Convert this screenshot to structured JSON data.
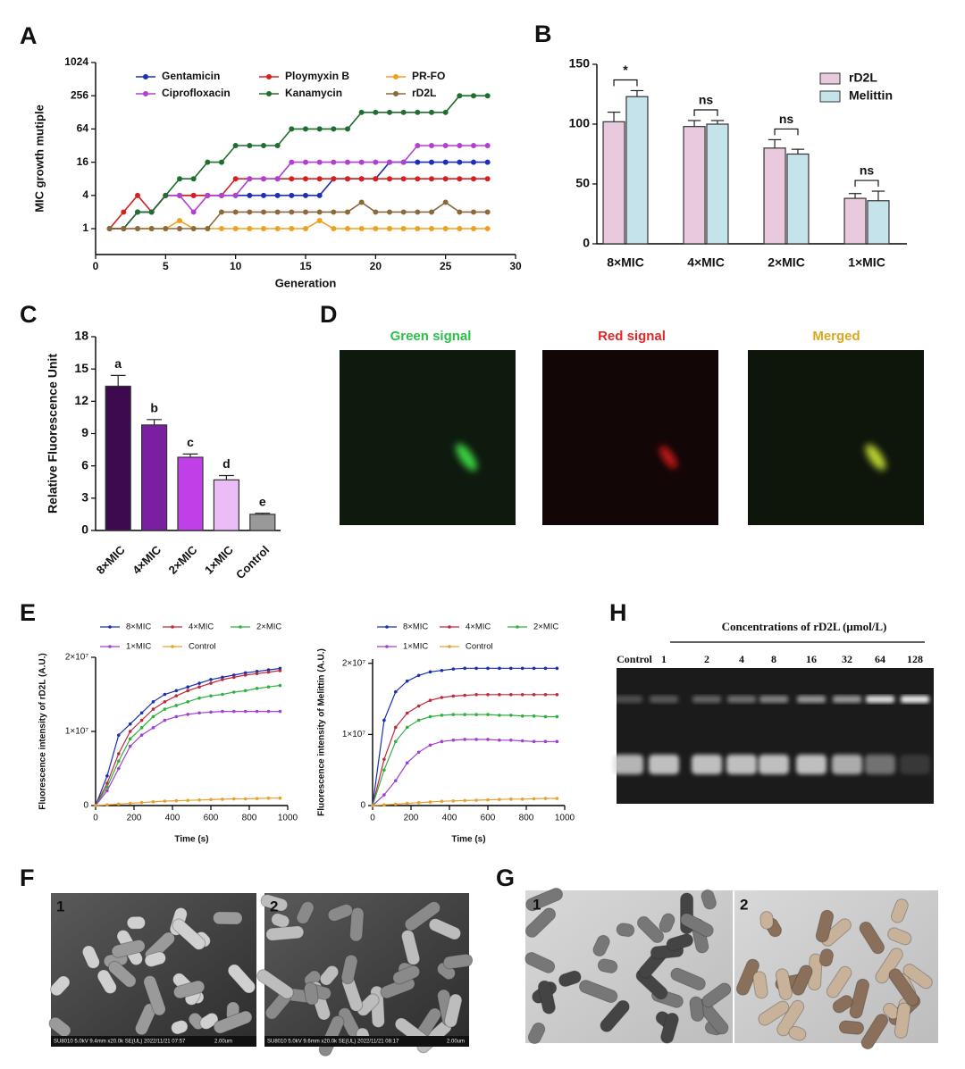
{
  "panel_labels": {
    "a": "A",
    "b": "B",
    "c": "C",
    "d": "D",
    "e": "E",
    "f": "F",
    "g": "G",
    "h": "H"
  },
  "chart_data": [
    {
      "type": "line",
      "ylabel": "MIC growth mutiple",
      "xlabel": "Generation",
      "yscale": "log",
      "xlim": [
        0,
        30
      ],
      "xticks": [
        0,
        5,
        10,
        15,
        20,
        25,
        30
      ],
      "ylim": [
        0.34,
        1024
      ],
      "yticks": [
        1,
        4,
        16,
        64,
        256,
        1024
      ],
      "x": [
        1,
        2,
        3,
        4,
        5,
        6,
        7,
        8,
        9,
        10,
        11,
        12,
        13,
        14,
        15,
        16,
        17,
        18,
        19,
        20,
        21,
        22,
        23,
        24,
        25,
        26,
        27,
        28
      ],
      "series": [
        {
          "name": "Gentamicin",
          "color": "#1f2fb5",
          "values": [
            1,
            1,
            2,
            2,
            4,
            4,
            4,
            4,
            4,
            4,
            4,
            4,
            4,
            4,
            4,
            4,
            8,
            8,
            8,
            8,
            16,
            16,
            16,
            16,
            16,
            16,
            16,
            16
          ]
        },
        {
          "name": "Ploymyxin B",
          "color": "#d62020",
          "values": [
            1,
            2,
            4,
            2,
            4,
            4,
            4,
            4,
            4,
            8,
            8,
            8,
            8,
            8,
            8,
            8,
            8,
            8,
            8,
            8,
            8,
            8,
            8,
            8,
            8,
            8,
            8,
            8
          ]
        },
        {
          "name": "PR-FO",
          "color": "#f0a020",
          "values": [
            1,
            1,
            1,
            1,
            1,
            1.4,
            1,
            1,
            1,
            1,
            1,
            1,
            1,
            1,
            1,
            1.4,
            1,
            1,
            1,
            1,
            1,
            1,
            1,
            1,
            1,
            1,
            1,
            1
          ]
        },
        {
          "name": "Ciprofloxacin",
          "color": "#b040d0",
          "values": [
            1,
            1,
            2,
            2,
            4,
            4,
            2,
            4,
            4,
            4,
            8,
            8,
            8,
            16,
            16,
            16,
            16,
            16,
            16,
            16,
            16,
            16,
            32,
            32,
            32,
            32,
            32,
            32
          ]
        },
        {
          "name": "Kanamycin",
          "color": "#1e6e2e",
          "values": [
            1,
            1,
            2,
            2,
            4,
            8,
            8,
            16,
            16,
            32,
            32,
            32,
            32,
            64,
            64,
            64,
            64,
            64,
            128,
            128,
            128,
            128,
            128,
            128,
            128,
            256,
            256,
            256
          ]
        },
        {
          "name": "rD2L",
          "color": "#8b6a3a",
          "values": [
            1,
            1,
            1,
            1,
            1,
            1,
            1,
            1,
            2,
            2,
            2,
            2,
            2,
            2,
            2,
            2,
            2,
            2,
            3,
            2,
            2,
            2,
            2,
            2,
            3,
            2,
            2,
            2
          ]
        }
      ]
    },
    {
      "type": "bar",
      "categories": [
        "8×MIC",
        "4×MIC",
        "2×MIC",
        "1×MIC"
      ],
      "ylim": [
        0,
        150
      ],
      "yticks": [
        0,
        50,
        100,
        150
      ],
      "annotations": [
        "*",
        "ns",
        "ns",
        "ns"
      ],
      "series": [
        {
          "name": "rD2L",
          "color": "#e8c9dd",
          "values": [
            102,
            98,
            80,
            38
          ],
          "errors": [
            8,
            5,
            7,
            4
          ]
        },
        {
          "name": "Melittin",
          "color": "#c5e3ea",
          "values": [
            123,
            100,
            75,
            36
          ],
          "errors": [
            5,
            3,
            4,
            8
          ]
        }
      ]
    },
    {
      "type": "bar",
      "ylabel": "Relative Fluorescence Unit",
      "categories": [
        "8×MIC",
        "4×MIC",
        "2×MIC",
        "1×MIC",
        "Control"
      ],
      "values": [
        13.4,
        9.8,
        6.8,
        4.7,
        1.5
      ],
      "errors": [
        1.0,
        0.5,
        0.3,
        0.4,
        0.1
      ],
      "colors": [
        "#3d0a4f",
        "#7a1fa0",
        "#c040e8",
        "#ebbcf6",
        "#999999"
      ],
      "letters": [
        "a",
        "b",
        "c",
        "d",
        "e"
      ],
      "ylim": [
        0,
        18
      ],
      "yticks": [
        0,
        3,
        6,
        9,
        12,
        15,
        18
      ]
    },
    {
      "type": "line",
      "ylabel": "Fluorescence intensity of rD2L (A.U.)",
      "xlabel": "Time (s)",
      "xlim": [
        0,
        1000
      ],
      "xticks": [
        0,
        200,
        400,
        600,
        800,
        1000
      ],
      "ylim": [
        0,
        20000000
      ],
      "yticks": [
        0,
        {
          "value": 10000000,
          "label": "1×10⁷"
        },
        {
          "value": 20000000,
          "label": "2×10⁷"
        }
      ],
      "x": [
        0,
        60,
        120,
        180,
        240,
        300,
        360,
        420,
        480,
        540,
        600,
        660,
        720,
        780,
        840,
        900,
        960
      ],
      "series": [
        {
          "name": "8×MIC",
          "color": "#1a2fb0",
          "values": [
            0,
            4000000,
            9500000,
            11000000,
            12500000,
            14000000,
            15000000,
            15500000,
            16000000,
            16500000,
            17000000,
            17300000,
            17600000,
            17900000,
            18100000,
            18300000,
            18500000
          ]
        },
        {
          "name": "4×MIC",
          "color": "#c0283c",
          "values": [
            0,
            3000000,
            7000000,
            10000000,
            11500000,
            13000000,
            14000000,
            14800000,
            15500000,
            16000000,
            16500000,
            17000000,
            17300000,
            17600000,
            17800000,
            18000000,
            18200000
          ]
        },
        {
          "name": "2×MIC",
          "color": "#30b040",
          "values": [
            0,
            2500000,
            6000000,
            9000000,
            10500000,
            12000000,
            13000000,
            13500000,
            14000000,
            14500000,
            14800000,
            15000000,
            15300000,
            15500000,
            15800000,
            16000000,
            16200000
          ]
        },
        {
          "name": "1×MIC",
          "color": "#a040d0",
          "values": [
            0,
            2000000,
            5000000,
            8000000,
            9500000,
            10500000,
            11500000,
            12000000,
            12300000,
            12500000,
            12600000,
            12700000,
            12700000,
            12700000,
            12700000,
            12700000,
            12700000
          ]
        },
        {
          "name": "Control",
          "color": "#e8a030",
          "values": [
            0,
            100000,
            200000,
            300000,
            400000,
            500000,
            600000,
            650000,
            700000,
            750000,
            800000,
            850000,
            900000,
            900000,
            950000,
            1000000,
            1000000
          ]
        }
      ]
    },
    {
      "type": "line",
      "ylabel": "Fluorescence intensity of Melittin (A.U.)",
      "xlabel": "Time (s)",
      "xlim": [
        0,
        1000
      ],
      "xticks": [
        0,
        200,
        400,
        600,
        800,
        1000
      ],
      "ylim": [
        0,
        20600000
      ],
      "yticks": [
        0,
        {
          "value": 10000000,
          "label": "1×10⁷"
        },
        {
          "value": 20000000,
          "label": "2×10⁷"
        }
      ],
      "x": [
        0,
        60,
        120,
        180,
        240,
        300,
        360,
        420,
        480,
        540,
        600,
        660,
        720,
        780,
        840,
        900,
        960
      ],
      "series": [
        {
          "name": "8×MIC",
          "color": "#1a2fb0",
          "values": [
            0,
            12000000,
            16000000,
            17500000,
            18300000,
            18800000,
            19000000,
            19200000,
            19300000,
            19300000,
            19300000,
            19300000,
            19300000,
            19300000,
            19300000,
            19300000,
            19300000
          ]
        },
        {
          "name": "4×MIC",
          "color": "#c0283c",
          "values": [
            0,
            6500000,
            11000000,
            13000000,
            14000000,
            14800000,
            15200000,
            15400000,
            15500000,
            15600000,
            15600000,
            15600000,
            15600000,
            15600000,
            15600000,
            15600000,
            15600000
          ]
        },
        {
          "name": "2×MIC",
          "color": "#30b040",
          "values": [
            0,
            5000000,
            9000000,
            11000000,
            12000000,
            12500000,
            12700000,
            12800000,
            12800000,
            12800000,
            12800000,
            12700000,
            12700000,
            12600000,
            12600000,
            12500000,
            12500000
          ]
        },
        {
          "name": "1×MIC",
          "color": "#a040d0",
          "values": [
            0,
            1500000,
            3500000,
            6000000,
            7500000,
            8500000,
            9000000,
            9200000,
            9300000,
            9300000,
            9300000,
            9200000,
            9200000,
            9100000,
            9000000,
            9000000,
            9000000
          ]
        },
        {
          "name": "Control",
          "color": "#e8a030",
          "values": [
            0,
            100000,
            200000,
            300000,
            400000,
            500000,
            600000,
            650000,
            700000,
            750000,
            800000,
            850000,
            900000,
            900000,
            950000,
            1000000,
            1000000
          ]
        }
      ]
    }
  ],
  "panel_d": {
    "titles": [
      "Green signal",
      "Red signal",
      "Merged"
    ]
  },
  "panel_h": {
    "title": "Concentrations of rD2L (μmol/L)",
    "lanes": [
      "Control",
      "1",
      "2",
      "4",
      "8",
      "16",
      "32",
      "64",
      "128"
    ]
  },
  "panel_f": {
    "images": [
      {
        "number": "1",
        "caption": "SU8010 5.0kV 9.4mm x20.0k SE(UL) 2022/11/21 07:57",
        "scale": "2.00um"
      },
      {
        "number": "2",
        "caption": "SU8010 5.0kV 9.6mm x20.0k SE(UL) 2022/11/21 08:17",
        "scale": "2.00um"
      }
    ]
  },
  "panel_g": {
    "numbers": [
      "1",
      "2"
    ]
  }
}
